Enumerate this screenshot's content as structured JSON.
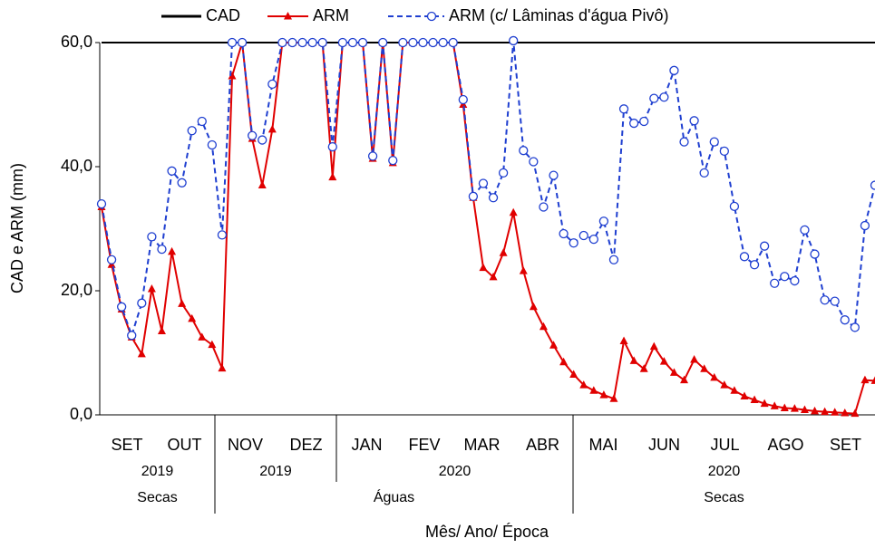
{
  "chart_data": {
    "type": "line",
    "y_label": "CAD e ARM (mm)",
    "x_label": "Mês/ Ano/ Época",
    "x_axis": {
      "months": [
        "SET",
        "OUT",
        "NOV",
        "DEZ",
        "JAN",
        "FEV",
        "MAR",
        "ABR",
        "MAI",
        "JUN",
        "JUL",
        "AGO",
        "SET"
      ],
      "years": [
        "2019",
        "2019",
        "2020",
        "2020"
      ],
      "seasons": [
        "Secas",
        "Águas",
        "Secas"
      ]
    },
    "ylim": [
      0,
      60
    ],
    "yticks": [
      {
        "value": 0,
        "label": "0,0"
      },
      {
        "value": 20,
        "label": "20,0"
      },
      {
        "value": 40,
        "label": "40,0"
      },
      {
        "value": 60,
        "label": "60,0"
      }
    ],
    "series": [
      {
        "name": "CAD",
        "color": "#000000",
        "values": [
          60,
          60,
          60,
          60,
          60,
          60,
          60,
          60,
          60,
          60,
          60,
          60,
          60,
          60,
          60,
          60,
          60,
          60,
          60,
          60,
          60,
          60,
          60,
          60,
          60,
          60,
          60,
          60,
          60,
          60,
          60,
          60,
          60,
          60,
          60,
          60,
          60,
          60,
          60,
          60,
          60,
          60,
          60,
          60,
          60,
          60,
          60,
          60,
          60,
          60,
          60,
          60,
          60,
          60,
          60,
          60,
          60,
          60,
          60,
          60,
          60,
          60,
          60,
          60,
          60,
          60,
          60,
          60,
          60,
          60,
          60,
          60,
          60,
          60,
          60,
          60,
          60,
          60
        ]
      },
      {
        "name": "ARM",
        "color": "#e00000",
        "values": [
          33.5,
          24.2,
          17,
          12.5,
          9.8,
          20.3,
          13.5,
          26.3,
          17.9,
          15.5,
          12.5,
          11.3,
          7.5,
          54.6,
          60,
          44.5,
          37,
          46,
          60,
          60,
          60,
          60,
          60,
          38.3,
          60,
          60,
          60,
          41.3,
          60,
          40.6,
          60,
          60,
          60,
          60,
          60,
          60,
          50,
          35,
          23.7,
          22.2,
          26.1,
          32.6,
          23.2,
          17.4,
          14.2,
          11.2,
          8.5,
          6.5,
          4.8,
          3.9,
          3.2,
          2.6,
          11.9,
          8.7,
          7.4,
          11,
          8.6,
          6.8,
          5.6,
          8.9,
          7.4,
          6,
          4.8,
          3.9,
          3,
          2.4,
          1.8,
          1.4,
          1.1,
          1,
          0.8,
          0.6,
          0.5,
          0.4,
          0.3,
          0.2,
          5.6,
          5.5
        ]
      },
      {
        "name": "ARM (c/ Lâminas d'água Pivô)",
        "color": "#1f3fd0",
        "values": [
          34,
          25,
          17.4,
          12.8,
          18,
          28.7,
          26.7,
          39.3,
          37.4,
          45.8,
          47.3,
          43.5,
          29,
          60,
          60,
          45,
          44.3,
          53.3,
          60,
          60,
          60,
          60,
          60,
          43.2,
          60,
          60,
          60,
          41.7,
          60,
          41,
          60,
          60,
          60,
          60,
          60,
          60,
          50.8,
          35.2,
          37.3,
          35,
          39,
          60.3,
          42.6,
          40.8,
          33.5,
          38.6,
          29.2,
          27.7,
          28.9,
          28.3,
          31.2,
          25,
          49.3,
          47,
          47.3,
          51,
          51.2,
          55.5,
          44,
          47.4,
          39,
          44,
          42.5,
          33.6,
          25.5,
          24.2,
          27.2,
          21.2,
          22.3,
          21.6,
          29.8,
          25.9,
          18.5,
          18.3,
          15.3,
          14.1,
          30.5,
          37
        ]
      }
    ]
  }
}
